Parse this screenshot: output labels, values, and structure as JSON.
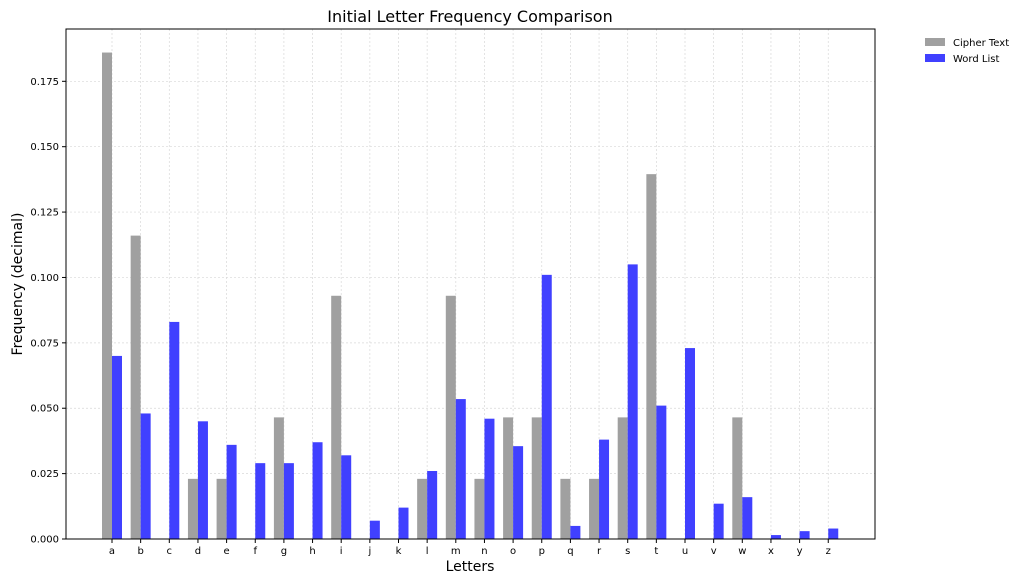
{
  "chart_data": {
    "type": "bar",
    "title": "Initial Letter Frequency Comparison",
    "xlabel": "Letters",
    "ylabel": "Frequency (decimal)",
    "ylim": [
      0,
      0.195
    ],
    "yticks": [
      "0.000",
      "0.025",
      "0.050",
      "0.075",
      "0.100",
      "0.125",
      "0.150",
      "0.175"
    ],
    "grid": true,
    "legend_position": "outside-top-right",
    "categories": [
      "a",
      "b",
      "c",
      "d",
      "e",
      "f",
      "g",
      "h",
      "i",
      "j",
      "k",
      "l",
      "m",
      "n",
      "o",
      "p",
      "q",
      "r",
      "s",
      "t",
      "u",
      "v",
      "w",
      "x",
      "y",
      "z"
    ],
    "series": [
      {
        "name": "Cipher Text",
        "color": "#a0a0a0",
        "values": [
          0.186,
          0.116,
          0,
          0.023,
          0.023,
          0,
          0.0465,
          0,
          0.093,
          0,
          0,
          0.023,
          0.093,
          0.023,
          0.0465,
          0.0465,
          0.023,
          0.023,
          0.0465,
          0.1395,
          0,
          0,
          0.0465,
          0,
          0,
          0
        ]
      },
      {
        "name": "Word List",
        "color": "#4040ff",
        "values": [
          0.07,
          0.048,
          0.083,
          0.045,
          0.036,
          0.029,
          0.029,
          0.037,
          0.032,
          0.007,
          0.012,
          0.026,
          0.0535,
          0.046,
          0.0355,
          0.101,
          0.005,
          0.038,
          0.105,
          0.051,
          0.073,
          0.0135,
          0.016,
          0.0015,
          0.003,
          0.004
        ]
      }
    ]
  }
}
